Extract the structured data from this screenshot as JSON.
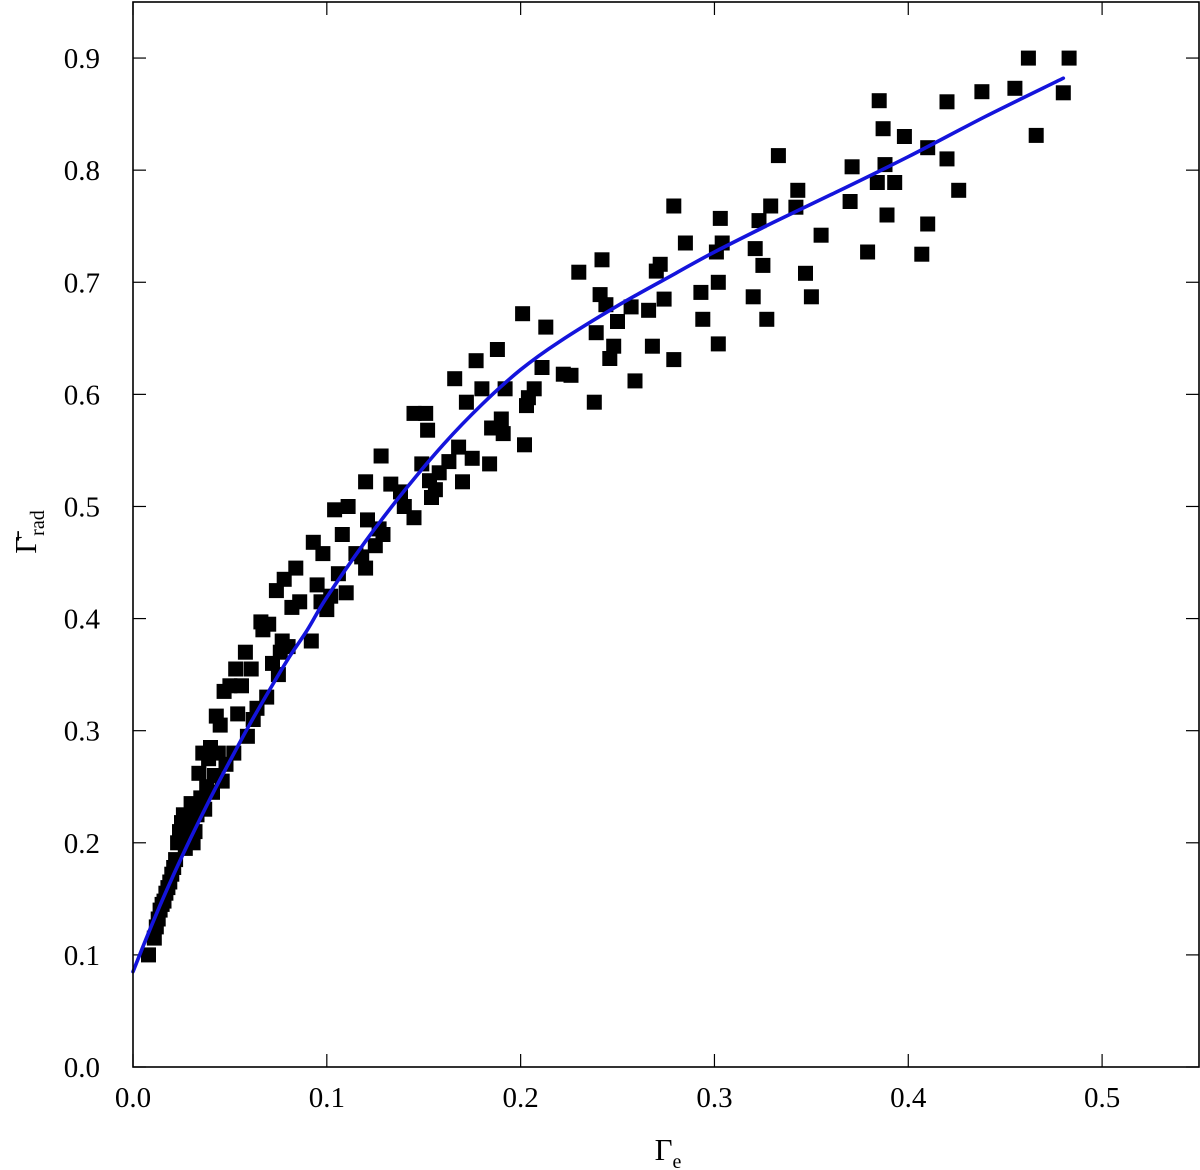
{
  "chart_data": {
    "type": "scatter",
    "title": "",
    "xlabel": "Γe",
    "ylabel": "Γ̄rad",
    "xlim": [
      0.0,
      0.55
    ],
    "ylim": [
      0.0,
      0.95
    ],
    "xticks": [
      0.0,
      0.1,
      0.2,
      0.3,
      0.4,
      0.5
    ],
    "yticks": [
      0.0,
      0.1,
      0.2,
      0.3,
      0.4,
      0.5,
      0.6,
      0.7,
      0.8,
      0.9
    ],
    "grid": false,
    "series": [
      {
        "type": "scatter",
        "marker": "square",
        "color": "#000000",
        "points": [
          [
            0.008,
            0.1
          ],
          [
            0.011,
            0.115
          ],
          [
            0.012,
            0.125
          ],
          [
            0.013,
            0.132
          ],
          [
            0.014,
            0.14
          ],
          [
            0.015,
            0.145
          ],
          [
            0.016,
            0.148
          ],
          [
            0.017,
            0.155
          ],
          [
            0.018,
            0.16
          ],
          [
            0.019,
            0.165
          ],
          [
            0.02,
            0.172
          ],
          [
            0.021,
            0.178
          ],
          [
            0.022,
            0.185
          ],
          [
            0.023,
            0.2
          ],
          [
            0.024,
            0.21
          ],
          [
            0.025,
            0.218
          ],
          [
            0.026,
            0.225
          ],
          [
            0.027,
            0.195
          ],
          [
            0.028,
            0.205
          ],
          [
            0.029,
            0.215
          ],
          [
            0.03,
            0.235
          ],
          [
            0.031,
            0.2
          ],
          [
            0.032,
            0.21
          ],
          [
            0.033,
            0.225
          ],
          [
            0.034,
            0.262
          ],
          [
            0.035,
            0.24
          ],
          [
            0.036,
            0.28
          ],
          [
            0.037,
            0.23
          ],
          [
            0.038,
            0.25
          ],
          [
            0.039,
            0.275
          ],
          [
            0.04,
            0.285
          ],
          [
            0.041,
            0.245
          ],
          [
            0.042,
            0.26
          ],
          [
            0.043,
            0.313
          ],
          [
            0.044,
            0.28
          ],
          [
            0.045,
            0.305
          ],
          [
            0.046,
            0.255
          ],
          [
            0.047,
            0.335
          ],
          [
            0.048,
            0.27
          ],
          [
            0.05,
            0.34
          ],
          [
            0.052,
            0.28
          ],
          [
            0.053,
            0.355
          ],
          [
            0.054,
            0.315
          ],
          [
            0.056,
            0.34
          ],
          [
            0.058,
            0.37
          ],
          [
            0.059,
            0.295
          ],
          [
            0.061,
            0.355
          ],
          [
            0.062,
            0.31
          ],
          [
            0.064,
            0.32
          ],
          [
            0.066,
            0.397
          ],
          [
            0.067,
            0.39
          ],
          [
            0.069,
            0.33
          ],
          [
            0.07,
            0.395
          ],
          [
            0.072,
            0.36
          ],
          [
            0.074,
            0.425
          ],
          [
            0.075,
            0.35
          ],
          [
            0.076,
            0.37
          ],
          [
            0.077,
            0.38
          ],
          [
            0.078,
            0.435
          ],
          [
            0.08,
            0.375
          ],
          [
            0.082,
            0.41
          ],
          [
            0.084,
            0.445
          ],
          [
            0.086,
            0.415
          ],
          [
            0.092,
            0.38
          ],
          [
            0.093,
            0.468
          ],
          [
            0.095,
            0.43
          ],
          [
            0.097,
            0.415
          ],
          [
            0.098,
            0.458
          ],
          [
            0.1,
            0.408
          ],
          [
            0.102,
            0.42
          ],
          [
            0.104,
            0.497
          ],
          [
            0.106,
            0.44
          ],
          [
            0.108,
            0.475
          ],
          [
            0.11,
            0.423
          ],
          [
            0.111,
            0.5
          ],
          [
            0.115,
            0.458
          ],
          [
            0.118,
            0.455
          ],
          [
            0.12,
            0.445
          ],
          [
            0.12,
            0.522
          ],
          [
            0.121,
            0.488
          ],
          [
            0.125,
            0.465
          ],
          [
            0.127,
            0.48
          ],
          [
            0.128,
            0.545
          ],
          [
            0.129,
            0.475
          ],
          [
            0.133,
            0.52
          ],
          [
            0.138,
            0.513
          ],
          [
            0.14,
            0.5
          ],
          [
            0.145,
            0.49
          ],
          [
            0.145,
            0.583
          ],
          [
            0.149,
            0.538
          ],
          [
            0.151,
            0.583
          ],
          [
            0.152,
            0.568
          ],
          [
            0.153,
            0.523
          ],
          [
            0.154,
            0.508
          ],
          [
            0.156,
            0.515
          ],
          [
            0.158,
            0.53
          ],
          [
            0.163,
            0.54
          ],
          [
            0.166,
            0.614
          ],
          [
            0.168,
            0.553
          ],
          [
            0.17,
            0.522
          ],
          [
            0.172,
            0.593
          ],
          [
            0.175,
            0.543
          ],
          [
            0.177,
            0.63
          ],
          [
            0.18,
            0.605
          ],
          [
            0.184,
            0.538
          ],
          [
            0.185,
            0.57
          ],
          [
            0.188,
            0.64
          ],
          [
            0.19,
            0.578
          ],
          [
            0.191,
            0.565
          ],
          [
            0.192,
            0.605
          ],
          [
            0.201,
            0.672
          ],
          [
            0.202,
            0.555
          ],
          [
            0.203,
            0.59
          ],
          [
            0.204,
            0.597
          ],
          [
            0.207,
            0.605
          ],
          [
            0.211,
            0.624
          ],
          [
            0.213,
            0.66
          ],
          [
            0.222,
            0.618
          ],
          [
            0.226,
            0.617
          ],
          [
            0.23,
            0.709
          ],
          [
            0.238,
            0.593
          ],
          [
            0.239,
            0.655
          ],
          [
            0.241,
            0.689
          ],
          [
            0.242,
            0.72
          ],
          [
            0.244,
            0.68
          ],
          [
            0.246,
            0.632
          ],
          [
            0.248,
            0.643
          ],
          [
            0.25,
            0.665
          ],
          [
            0.257,
            0.678
          ],
          [
            0.259,
            0.612
          ],
          [
            0.266,
            0.675
          ],
          [
            0.268,
            0.643
          ],
          [
            0.27,
            0.71
          ],
          [
            0.272,
            0.716
          ],
          [
            0.274,
            0.685
          ],
          [
            0.279,
            0.631
          ],
          [
            0.279,
            0.768
          ],
          [
            0.285,
            0.735
          ],
          [
            0.293,
            0.691
          ],
          [
            0.294,
            0.667
          ],
          [
            0.301,
            0.727
          ],
          [
            0.302,
            0.645
          ],
          [
            0.303,
            0.757
          ],
          [
            0.304,
            0.735
          ],
          [
            0.302,
            0.7
          ],
          [
            0.32,
            0.687
          ],
          [
            0.321,
            0.73
          ],
          [
            0.323,
            0.755
          ],
          [
            0.325,
            0.715
          ],
          [
            0.327,
            0.667
          ],
          [
            0.329,
            0.768
          ],
          [
            0.333,
            0.813
          ],
          [
            0.342,
            0.767
          ],
          [
            0.343,
            0.782
          ],
          [
            0.347,
            0.708
          ],
          [
            0.35,
            0.687
          ],
          [
            0.355,
            0.742
          ],
          [
            0.37,
            0.772
          ],
          [
            0.371,
            0.803
          ],
          [
            0.379,
            0.727
          ],
          [
            0.384,
            0.789
          ],
          [
            0.385,
            0.862
          ],
          [
            0.387,
            0.837
          ],
          [
            0.388,
            0.805
          ],
          [
            0.389,
            0.76
          ],
          [
            0.393,
            0.789
          ],
          [
            0.398,
            0.83
          ],
          [
            0.407,
            0.725
          ],
          [
            0.41,
            0.82
          ],
          [
            0.41,
            0.752
          ],
          [
            0.42,
            0.81
          ],
          [
            0.42,
            0.861
          ],
          [
            0.426,
            0.782
          ],
          [
            0.438,
            0.87
          ],
          [
            0.455,
            0.873
          ],
          [
            0.462,
            0.9
          ],
          [
            0.466,
            0.831
          ],
          [
            0.48,
            0.869
          ],
          [
            0.483,
            0.9
          ]
        ]
      },
      {
        "type": "line",
        "color": "#1414dc",
        "x": [
          0.0,
          0.01,
          0.02,
          0.03,
          0.04,
          0.05,
          0.06,
          0.07,
          0.08,
          0.09,
          0.1,
          0.12,
          0.14,
          0.16,
          0.18,
          0.2,
          0.22,
          0.25,
          0.28,
          0.3,
          0.33,
          0.36,
          0.4,
          0.44,
          0.48
        ],
        "y": [
          0.085,
          0.128,
          0.168,
          0.205,
          0.24,
          0.273,
          0.305,
          0.335,
          0.364,
          0.39,
          0.419,
          0.469,
          0.514,
          0.555,
          0.591,
          0.622,
          0.647,
          0.679,
          0.708,
          0.727,
          0.753,
          0.778,
          0.812,
          0.848,
          0.882
        ]
      }
    ]
  }
}
